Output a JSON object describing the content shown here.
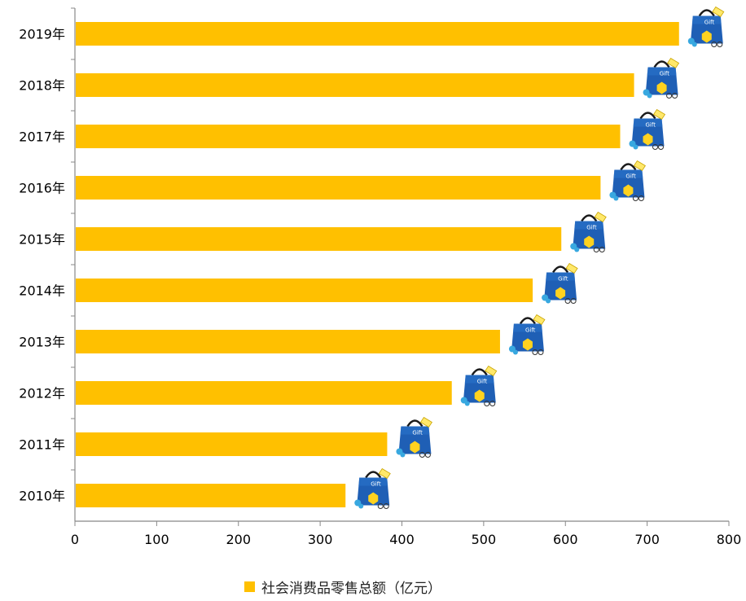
{
  "chart_data": {
    "type": "bar",
    "orientation": "horizontal",
    "categories": [
      "2019年",
      "2018年",
      "2017年",
      "2016年",
      "2015年",
      "2014年",
      "2013年",
      "2012年",
      "2011年",
      "2010年"
    ],
    "series": [
      {
        "name": "社会消费品零售总额（亿元）",
        "values": [
          739,
          684,
          667,
          643,
          595,
          560,
          520,
          461,
          382,
          331
        ],
        "color": "#FFC000"
      }
    ],
    "xlim": [
      0,
      800
    ],
    "xticks": [
      0,
      100,
      200,
      300,
      400,
      500,
      600,
      700,
      800
    ],
    "xlabel": "",
    "ylabel": "",
    "grid": false,
    "legend_position": "bottom",
    "marker_icon": "shopping-bag-icon"
  }
}
